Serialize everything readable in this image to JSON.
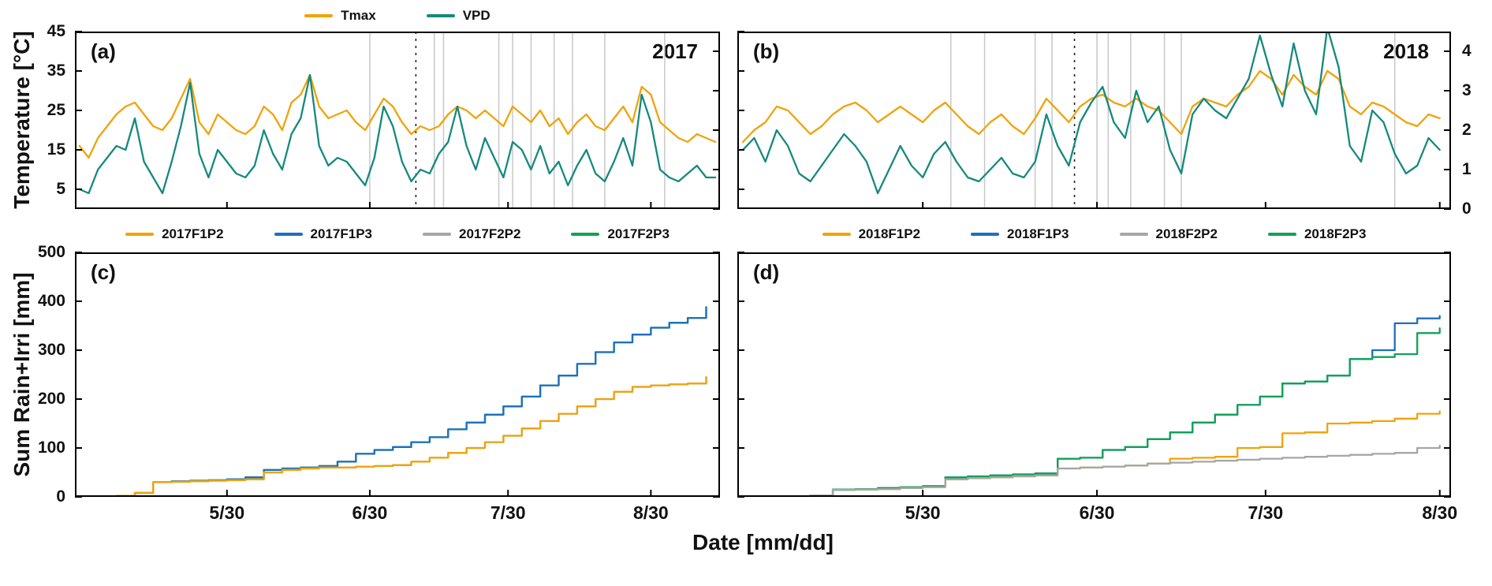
{
  "figure": {
    "xlabel": "Date [mm/dd]",
    "ylabel_top": "Temperature [°C]",
    "ylabel_bottom": "Sum Rain+Irri [mm]",
    "colors": {
      "tmax_orange": "#F0A30A",
      "vpd_teal": "#14897E",
      "p3_blue": "#1F6FBE",
      "p2_gray": "#A6A6A6",
      "p3_green": "#12A158",
      "event_gray": "#C8C8C8",
      "axis_black": "#000000"
    }
  },
  "chart_data": [
    {
      "id": "a",
      "type": "line",
      "panel_label": "(a)",
      "year_label": "2017",
      "x_unit": "day_of_year",
      "x_range": [
        117,
        257
      ],
      "x_ticks": [
        {
          "v": 150,
          "label": "5/30"
        },
        {
          "v": 181,
          "label": "6/30"
        },
        {
          "v": 211,
          "label": "7/30"
        },
        {
          "v": 242,
          "label": "8/30"
        }
      ],
      "show_x_tick_labels": false,
      "y_left": {
        "range": [
          0,
          45
        ],
        "ticks": [
          5,
          15,
          25,
          35,
          45
        ],
        "show_labels": true
      },
      "y_right": {
        "range": [
          0,
          4.5
        ],
        "ticks": [
          0,
          1,
          2,
          3,
          4
        ],
        "show_labels": false
      },
      "event_lines": {
        "gray_days": [
          181,
          195,
          197,
          209,
          212,
          216,
          221,
          225,
          232,
          245
        ],
        "dotted_day": 191
      },
      "legend": [
        {
          "label": "Tmax",
          "color": "#F0A30A"
        },
        {
          "label": "VPD",
          "color": "#14897E"
        }
      ],
      "series": [
        {
          "name": "Tmax",
          "axis": "left",
          "color": "#F0A30A",
          "x_start": 118,
          "x_step": 2,
          "values": [
            16,
            13,
            18,
            21,
            24,
            26,
            27,
            24,
            21,
            20,
            23,
            28,
            33,
            22,
            19,
            24,
            22,
            20,
            19,
            21,
            26,
            24,
            20,
            27,
            29,
            34,
            26,
            23,
            24,
            25,
            22,
            20,
            24,
            28,
            26,
            22,
            19,
            21,
            20,
            21,
            24,
            26,
            25,
            23,
            25,
            23,
            21,
            26,
            24,
            22,
            25,
            21,
            23,
            19,
            22,
            24,
            21,
            20,
            23,
            26,
            22,
            31,
            29,
            22,
            20,
            18,
            17,
            19,
            18,
            17
          ]
        },
        {
          "name": "VPD",
          "axis": "right",
          "color": "#14897E",
          "x_start": 118,
          "x_step": 2,
          "values": [
            0.5,
            0.4,
            1.0,
            1.3,
            1.6,
            1.5,
            2.3,
            1.2,
            0.8,
            0.4,
            1.2,
            2.1,
            3.2,
            1.4,
            0.8,
            1.5,
            1.2,
            0.9,
            0.8,
            1.1,
            2.0,
            1.4,
            1.0,
            1.9,
            2.3,
            3.4,
            1.6,
            1.1,
            1.3,
            1.2,
            0.9,
            0.6,
            1.3,
            2.6,
            2.1,
            1.2,
            0.7,
            1.0,
            0.9,
            1.4,
            1.7,
            2.6,
            1.6,
            1.0,
            1.8,
            1.3,
            0.8,
            1.7,
            1.5,
            1.0,
            1.6,
            0.9,
            1.2,
            0.6,
            1.1,
            1.5,
            0.9,
            0.7,
            1.2,
            1.8,
            1.1,
            2.9,
            2.2,
            1.0,
            0.8,
            0.7,
            0.9,
            1.1,
            0.8,
            0.8
          ]
        }
      ]
    },
    {
      "id": "b",
      "type": "line",
      "panel_label": "(b)",
      "year_label": "2018",
      "x_unit": "day_of_year",
      "x_range": [
        117,
        244
      ],
      "x_ticks": [
        {
          "v": 150,
          "label": "5/30"
        },
        {
          "v": 181,
          "label": "6/30"
        },
        {
          "v": 211,
          "label": "7/30"
        },
        {
          "v": 242,
          "label": "8/30"
        }
      ],
      "show_x_tick_labels": false,
      "y_left": {
        "range": [
          0,
          45
        ],
        "ticks": [
          5,
          15,
          25,
          35,
          45
        ],
        "show_labels": false
      },
      "y_right": {
        "range": [
          0,
          4.5
        ],
        "ticks": [
          0,
          1,
          2,
          3,
          4
        ],
        "show_labels": true
      },
      "event_lines": {
        "gray_days": [
          155,
          161,
          170,
          173,
          181,
          183,
          187,
          193,
          196,
          234
        ],
        "dotted_day": 177
      },
      "legend": [],
      "series": [
        {
          "name": "Tmax",
          "axis": "left",
          "color": "#F0A30A",
          "x_start": 118,
          "x_step": 2,
          "values": [
            17,
            20,
            22,
            26,
            25,
            22,
            19,
            21,
            24,
            26,
            27,
            25,
            22,
            24,
            26,
            24,
            22,
            25,
            27,
            24,
            21,
            19,
            22,
            24,
            21,
            19,
            23,
            28,
            25,
            22,
            26,
            28,
            29,
            27,
            26,
            28,
            26,
            25,
            22,
            19,
            26,
            28,
            27,
            26,
            29,
            31,
            35,
            33,
            29,
            34,
            31,
            29,
            35,
            33,
            26,
            24,
            27,
            26,
            24,
            22,
            21,
            24,
            23
          ]
        },
        {
          "name": "VPD",
          "axis": "right",
          "color": "#14897E",
          "x_start": 118,
          "x_step": 2,
          "values": [
            1.5,
            1.8,
            1.2,
            2.0,
            1.6,
            0.9,
            0.7,
            1.1,
            1.5,
            1.9,
            1.6,
            1.2,
            0.4,
            1.0,
            1.6,
            1.1,
            0.8,
            1.4,
            1.7,
            1.2,
            0.8,
            0.7,
            1.0,
            1.3,
            0.9,
            0.8,
            1.2,
            2.4,
            1.6,
            1.1,
            2.2,
            2.7,
            3.1,
            2.2,
            1.8,
            3.0,
            2.2,
            2.6,
            1.5,
            0.9,
            2.4,
            2.8,
            2.5,
            2.3,
            2.8,
            3.3,
            4.4,
            3.4,
            2.6,
            4.2,
            3.0,
            2.4,
            4.6,
            3.6,
            1.6,
            1.2,
            2.5,
            2.2,
            1.4,
            0.9,
            1.1,
            1.8,
            1.5
          ]
        }
      ]
    },
    {
      "id": "c",
      "type": "line",
      "panel_label": "(c)",
      "x_unit": "day_of_year",
      "x_range": [
        117,
        257
      ],
      "x_ticks": [
        {
          "v": 150,
          "label": "5/30"
        },
        {
          "v": 181,
          "label": "6/30"
        },
        {
          "v": 211,
          "label": "7/30"
        },
        {
          "v": 242,
          "label": "8/30"
        }
      ],
      "show_x_tick_labels": true,
      "y_left": {
        "range": [
          0,
          500
        ],
        "ticks": [
          0,
          100,
          200,
          300,
          400,
          500
        ],
        "show_labels": true
      },
      "legend": [
        {
          "label": "2017F1P2",
          "color": "#F0A30A"
        },
        {
          "label": "2017F1P3",
          "color": "#1F6FBE"
        },
        {
          "label": "2017F2P2",
          "color": "#A6A6A6"
        },
        {
          "label": "2017F2P3",
          "color": "#12A158"
        }
      ],
      "series": [
        {
          "name": "2017F2P3",
          "axis": "left",
          "color": "#12A158",
          "step": true,
          "x_start": 118,
          "x_step": 4,
          "values": [
            0,
            0,
            2,
            8,
            30,
            32,
            33,
            34,
            36,
            40,
            55,
            58,
            60,
            63,
            72,
            88,
            96,
            102,
            112,
            122,
            138,
            152,
            168,
            185,
            205,
            228,
            248,
            272,
            296,
            316,
            332,
            346,
            356,
            366,
            388
          ]
        },
        {
          "name": "2017F1P3",
          "axis": "left",
          "color": "#1F6FBE",
          "step": true,
          "x_start": 118,
          "x_step": 4,
          "values": [
            0,
            0,
            2,
            8,
            30,
            32,
            33,
            34,
            36,
            40,
            55,
            58,
            60,
            63,
            72,
            88,
            96,
            102,
            112,
            122,
            138,
            152,
            168,
            185,
            205,
            228,
            248,
            272,
            296,
            316,
            332,
            346,
            356,
            366,
            388
          ]
        },
        {
          "name": "2017F2P2",
          "axis": "left",
          "color": "#A6A6A6",
          "step": true,
          "x_start": 118,
          "x_step": 4,
          "values": [
            0,
            0,
            2,
            8,
            30,
            31,
            32,
            33,
            34,
            36,
            50,
            55,
            58,
            60,
            60,
            62,
            63,
            65,
            72,
            80,
            90,
            100,
            112,
            125,
            140,
            155,
            170,
            185,
            200,
            215,
            225,
            228,
            230,
            232,
            245
          ]
        },
        {
          "name": "2017F1P2",
          "axis": "left",
          "color": "#F0A30A",
          "step": true,
          "x_start": 118,
          "x_step": 4,
          "values": [
            0,
            0,
            2,
            8,
            30,
            31,
            32,
            33,
            34,
            36,
            50,
            55,
            58,
            60,
            60,
            62,
            63,
            65,
            72,
            80,
            90,
            100,
            112,
            125,
            140,
            155,
            170,
            185,
            200,
            215,
            225,
            228,
            230,
            232,
            245
          ]
        }
      ]
    },
    {
      "id": "d",
      "type": "line",
      "panel_label": "(d)",
      "x_unit": "day_of_year",
      "x_range": [
        117,
        244
      ],
      "x_ticks": [
        {
          "v": 150,
          "label": "5/30"
        },
        {
          "v": 181,
          "label": "6/30"
        },
        {
          "v": 211,
          "label": "7/30"
        },
        {
          "v": 242,
          "label": "8/30"
        }
      ],
      "show_x_tick_labels": true,
      "y_left": {
        "range": [
          0,
          500
        ],
        "ticks": [
          0,
          100,
          200,
          300,
          400,
          500
        ],
        "show_labels": false
      },
      "legend": [
        {
          "label": "2018F1P2",
          "color": "#F0A30A"
        },
        {
          "label": "2018F1P3",
          "color": "#1F6FBE"
        },
        {
          "label": "2018F2P2",
          "color": "#A6A6A6"
        },
        {
          "label": "2018F2P3",
          "color": "#12A158"
        }
      ],
      "series": [
        {
          "name": "2018F1P3",
          "axis": "left",
          "color": "#1F6FBE",
          "step": true,
          "x_start": 118,
          "x_step": 4,
          "values": [
            0,
            0,
            1,
            3,
            15,
            16,
            18,
            20,
            22,
            40,
            42,
            44,
            46,
            48,
            78,
            80,
            96,
            102,
            118,
            132,
            152,
            168,
            188,
            205,
            232,
            236,
            248,
            282,
            300,
            355,
            365,
            370
          ]
        },
        {
          "name": "2018F2P3",
          "axis": "left",
          "color": "#12A158",
          "step": true,
          "x_start": 118,
          "x_step": 4,
          "values": [
            0,
            0,
            1,
            3,
            15,
            16,
            18,
            20,
            22,
            40,
            42,
            44,
            46,
            48,
            78,
            80,
            96,
            102,
            118,
            132,
            152,
            168,
            188,
            205,
            232,
            236,
            248,
            282,
            286,
            292,
            335,
            345
          ]
        },
        {
          "name": "2018F1P2",
          "axis": "left",
          "color": "#F0A30A",
          "step": true,
          "x_start": 118,
          "x_step": 4,
          "values": [
            0,
            0,
            1,
            3,
            14,
            15,
            16,
            18,
            20,
            36,
            38,
            40,
            42,
            44,
            58,
            60,
            62,
            64,
            68,
            78,
            80,
            82,
            100,
            102,
            130,
            132,
            150,
            152,
            155,
            160,
            170,
            175
          ]
        },
        {
          "name": "2018F2P2",
          "axis": "left",
          "color": "#A6A6A6",
          "step": true,
          "x_start": 118,
          "x_step": 4,
          "values": [
            0,
            0,
            1,
            3,
            14,
            15,
            16,
            18,
            20,
            36,
            38,
            40,
            42,
            44,
            58,
            60,
            62,
            64,
            68,
            70,
            72,
            74,
            76,
            78,
            80,
            82,
            84,
            86,
            88,
            90,
            100,
            105
          ]
        }
      ]
    }
  ]
}
